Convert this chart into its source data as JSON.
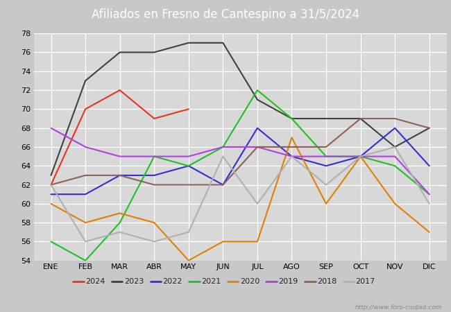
{
  "title": "Afiliados en Fresno de Cantespino a 31/5/2024",
  "title_color": "#ffffff",
  "header_bg": "#4472c4",
  "bg_color": "#c8c8c8",
  "plot_bg": "#d8d8d8",
  "ylim": [
    54,
    78
  ],
  "yticks": [
    54,
    56,
    58,
    60,
    62,
    64,
    66,
    68,
    70,
    72,
    74,
    76,
    78
  ],
  "months": [
    "ENE",
    "FEB",
    "MAR",
    "ABR",
    "MAY",
    "JUN",
    "JUL",
    "AGO",
    "SEP",
    "OCT",
    "NOV",
    "DIC"
  ],
  "series": [
    {
      "year": "2024",
      "color": "#e8341c",
      "data": [
        62,
        70,
        72,
        69,
        70,
        null,
        null,
        null,
        null,
        null,
        null,
        null
      ]
    },
    {
      "year": "2023",
      "color": "#404040",
      "data": [
        63,
        73,
        76,
        76,
        77,
        77,
        71,
        69,
        69,
        69,
        66,
        68
      ]
    },
    {
      "year": "2022",
      "color": "#3030d0",
      "data": [
        61,
        61,
        63,
        63,
        64,
        62,
        68,
        65,
        64,
        65,
        68,
        64
      ]
    },
    {
      "year": "2021",
      "color": "#20c020",
      "data": [
        56,
        54,
        58,
        65,
        64,
        66,
        72,
        69,
        65,
        65,
        64,
        61
      ]
    },
    {
      "year": "2020",
      "color": "#e08000",
      "data": [
        60,
        58,
        59,
        58,
        54,
        56,
        56,
        67,
        60,
        65,
        60,
        57
      ]
    },
    {
      "year": "2019",
      "color": "#b040e0",
      "data": [
        68,
        66,
        65,
        65,
        65,
        66,
        66,
        65,
        65,
        65,
        65,
        61
      ]
    },
    {
      "year": "2018",
      "color": "#906050",
      "data": [
        62,
        63,
        63,
        62,
        62,
        62,
        66,
        66,
        66,
        69,
        69,
        68
      ]
    },
    {
      "year": "2017",
      "color": "#b0b0b0",
      "data": [
        62,
        56,
        57,
        56,
        57,
        65,
        60,
        65,
        62,
        65,
        66,
        60
      ]
    }
  ],
  "watermark": "http://www.foro-ciudad.com",
  "title_fontsize": 12,
  "tick_fontsize": 8,
  "legend_fontsize": 8,
  "linewidth": 1.5
}
